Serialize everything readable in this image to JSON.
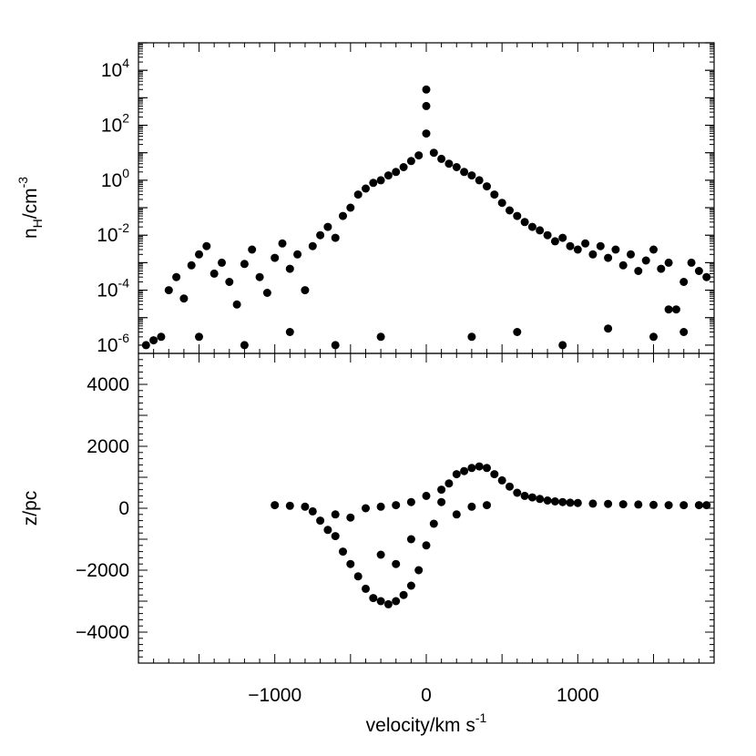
{
  "chart_data": [
    {
      "type": "scatter",
      "xlabel": "velocity/km s",
      "xlabel_exp": "-1",
      "ylabel": "n",
      "ylabel_sub": "H",
      "ylabel_mid": "/cm",
      "ylabel_exp": "-3",
      "xlim": [
        -1900,
        1900
      ],
      "ylim": [
        5e-07,
        100000
      ],
      "yscale": "log",
      "y_ticks": [
        {
          "label": "10",
          "exp": "-6",
          "value": 1e-06
        },
        {
          "label": "10",
          "exp": "-4",
          "value": 0.0001
        },
        {
          "label": "10",
          "exp": "-2",
          "value": 0.01
        },
        {
          "label": "10",
          "exp": "0",
          "value": 1
        },
        {
          "label": "10",
          "exp": "2",
          "value": 100
        },
        {
          "label": "10",
          "exp": "4",
          "value": 10000
        }
      ],
      "x_ticks_shown": false,
      "grid": false,
      "color": "#000000",
      "points": [
        [
          -1850,
          1e-06
        ],
        [
          -1800,
          1.5e-06
        ],
        [
          -1750,
          2e-06
        ],
        [
          -1700,
          0.0001
        ],
        [
          -1650,
          0.0003
        ],
        [
          -1600,
          5e-05
        ],
        [
          -1550,
          0.0008
        ],
        [
          -1500,
          0.002
        ],
        [
          -1450,
          0.004
        ],
        [
          -1400,
          0.0004
        ],
        [
          -1350,
          0.001
        ],
        [
          -1300,
          0.0002
        ],
        [
          -1250,
          3e-05
        ],
        [
          -1200,
          0.0009
        ],
        [
          -1150,
          0.003
        ],
        [
          -1100,
          0.0003
        ],
        [
          -1050,
          8e-05
        ],
        [
          -1000,
          0.0015
        ],
        [
          -950,
          0.005
        ],
        [
          -900,
          0.0006
        ],
        [
          -850,
          0.002
        ],
        [
          -800,
          0.0001
        ],
        [
          -750,
          0.004
        ],
        [
          -700,
          0.01
        ],
        [
          -650,
          0.02
        ],
        [
          -600,
          0.008
        ],
        [
          -550,
          0.05
        ],
        [
          -500,
          0.1
        ],
        [
          -450,
          0.3
        ],
        [
          -400,
          0.5
        ],
        [
          -350,
          0.8
        ],
        [
          -300,
          1
        ],
        [
          -250,
          1.5
        ],
        [
          -200,
          2
        ],
        [
          -150,
          3
        ],
        [
          -100,
          5
        ],
        [
          -50,
          8
        ],
        [
          0,
          50
        ],
        [
          0,
          500
        ],
        [
          0,
          2000
        ],
        [
          50,
          10
        ],
        [
          100,
          6
        ],
        [
          150,
          4
        ],
        [
          200,
          3
        ],
        [
          250,
          2
        ],
        [
          300,
          1.5
        ],
        [
          350,
          1
        ],
        [
          400,
          0.6
        ],
        [
          450,
          0.3
        ],
        [
          500,
          0.15
        ],
        [
          550,
          0.08
        ],
        [
          600,
          0.05
        ],
        [
          650,
          0.03
        ],
        [
          700,
          0.02
        ],
        [
          750,
          0.015
        ],
        [
          800,
          0.01
        ],
        [
          850,
          0.006
        ],
        [
          900,
          0.008
        ],
        [
          950,
          0.004
        ],
        [
          1000,
          0.003
        ],
        [
          1050,
          0.005
        ],
        [
          1100,
          0.002
        ],
        [
          1150,
          0.004
        ],
        [
          1200,
          0.0015
        ],
        [
          1250,
          0.003
        ],
        [
          1300,
          0.0008
        ],
        [
          1350,
          0.002
        ],
        [
          1400,
          0.0005
        ],
        [
          1450,
          0.0012
        ],
        [
          1500,
          0.003
        ],
        [
          1550,
          0.0006
        ],
        [
          1600,
          0.001
        ],
        [
          1650,
          2e-05
        ],
        [
          1700,
          0.0002
        ],
        [
          1750,
          0.001
        ],
        [
          1800,
          0.0005
        ],
        [
          1850,
          0.0003
        ],
        [
          -1500,
          2e-06
        ],
        [
          -1200,
          1e-06
        ],
        [
          -900,
          3e-06
        ],
        [
          -600,
          1e-06
        ],
        [
          -300,
          2e-06
        ],
        [
          300,
          2e-06
        ],
        [
          600,
          3e-06
        ],
        [
          900,
          1e-06
        ],
        [
          1200,
          4e-06
        ],
        [
          1500,
          2e-06
        ],
        [
          1600,
          2e-05
        ],
        [
          1700,
          3e-06
        ]
      ]
    },
    {
      "type": "scatter",
      "xlabel": "velocity/km s",
      "xlabel_exp": "-1",
      "ylabel": "z/pc",
      "xlim": [
        -1900,
        1900
      ],
      "ylim": [
        -5000,
        5000
      ],
      "x_ticks": [
        -1000,
        0,
        1000
      ],
      "y_ticks": [
        -4000,
        -2000,
        0,
        2000,
        4000
      ],
      "grid": false,
      "color": "#000000",
      "points": [
        [
          -1000,
          100
        ],
        [
          -900,
          80
        ],
        [
          -800,
          50
        ],
        [
          -750,
          -100
        ],
        [
          -700,
          -400
        ],
        [
          -650,
          -700
        ],
        [
          -600,
          -900
        ],
        [
          -550,
          -1400
        ],
        [
          -500,
          -1800
        ],
        [
          -450,
          -2200
        ],
        [
          -400,
          -2600
        ],
        [
          -350,
          -2900
        ],
        [
          -300,
          -3000
        ],
        [
          -250,
          -3100
        ],
        [
          -200,
          -3000
        ],
        [
          -150,
          -2800
        ],
        [
          -100,
          -2500
        ],
        [
          -50,
          -2000
        ],
        [
          0,
          -1200
        ],
        [
          50,
          -500
        ],
        [
          100,
          200
        ],
        [
          150,
          800
        ],
        [
          200,
          1100
        ],
        [
          250,
          1200
        ],
        [
          300,
          1300
        ],
        [
          350,
          1350
        ],
        [
          400,
          1300
        ],
        [
          450,
          1100
        ],
        [
          500,
          900
        ],
        [
          550,
          700
        ],
        [
          600,
          500
        ],
        [
          650,
          400
        ],
        [
          700,
          350
        ],
        [
          750,
          300
        ],
        [
          800,
          250
        ],
        [
          850,
          220
        ],
        [
          900,
          200
        ],
        [
          950,
          180
        ],
        [
          1000,
          170
        ],
        [
          1100,
          150
        ],
        [
          1200,
          140
        ],
        [
          1300,
          130
        ],
        [
          1400,
          120
        ],
        [
          1500,
          110
        ],
        [
          1600,
          100
        ],
        [
          1700,
          100
        ],
        [
          1800,
          100
        ],
        [
          1850,
          100
        ],
        [
          -400,
          0
        ],
        [
          -300,
          50
        ],
        [
          -200,
          100
        ],
        [
          -100,
          200
        ],
        [
          0,
          400
        ],
        [
          100,
          600
        ],
        [
          -500,
          -300
        ],
        [
          -600,
          -200
        ],
        [
          -300,
          -1500
        ],
        [
          -200,
          -1800
        ],
        [
          -100,
          -1000
        ],
        [
          200,
          -200
        ],
        [
          300,
          50
        ],
        [
          400,
          100
        ]
      ]
    }
  ]
}
